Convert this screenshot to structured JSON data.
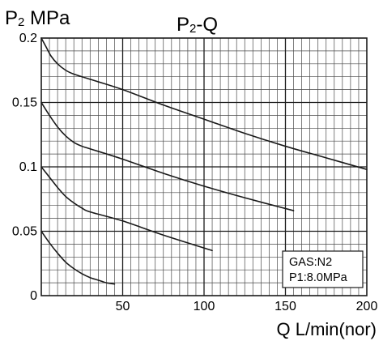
{
  "chart_data": {
    "type": "line",
    "title": {
      "main": "P",
      "sub": "2",
      "rest": "-Q"
    },
    "ylabel": {
      "main": "P",
      "sub": "2",
      "rest": " MPa"
    },
    "xlabel": "Q L/min(nor)",
    "xlim": [
      0,
      200
    ],
    "ylim": [
      0,
      0.2
    ],
    "x_ticks": [
      50,
      100,
      150,
      200
    ],
    "x_tick_labels": [
      "50",
      "100",
      "150",
      "200"
    ],
    "y_ticks": [
      0,
      0.05,
      0.1,
      0.15,
      0.2
    ],
    "y_tick_labels": [
      "0",
      "0.05",
      "0.1",
      "0.15",
      "0.2"
    ],
    "grid": {
      "major": true,
      "minor": true,
      "x_minor_step": 5,
      "y_minor_step": 0.01
    },
    "legend": {
      "position": "bottom-right",
      "lines": [
        "GAS:N2",
        "P1:8.0MPa"
      ]
    },
    "series": [
      {
        "x": [
          0,
          3,
          6,
          10,
          15,
          20,
          30,
          50,
          75,
          100,
          125,
          150,
          175,
          200
        ],
        "y": [
          0.2,
          0.193,
          0.186,
          0.18,
          0.175,
          0.172,
          0.168,
          0.16,
          0.148,
          0.137,
          0.126,
          0.116,
          0.107,
          0.098
        ]
      },
      {
        "x": [
          0,
          5,
          10,
          15,
          20,
          25,
          30,
          50,
          75,
          100,
          125,
          155
        ],
        "y": [
          0.15,
          0.14,
          0.131,
          0.124,
          0.119,
          0.116,
          0.114,
          0.106,
          0.095,
          0.085,
          0.076,
          0.066
        ]
      },
      {
        "x": [
          0,
          5,
          10,
          15,
          20,
          25,
          30,
          50,
          75,
          105
        ],
        "y": [
          0.1,
          0.092,
          0.084,
          0.077,
          0.072,
          0.068,
          0.065,
          0.058,
          0.047,
          0.035
        ]
      },
      {
        "x": [
          0,
          5,
          10,
          15,
          20,
          25,
          30,
          35,
          40,
          45
        ],
        "y": [
          0.05,
          0.041,
          0.033,
          0.026,
          0.021,
          0.017,
          0.014,
          0.012,
          0.01,
          0.009
        ]
      }
    ]
  },
  "colors": {
    "line": "#1a1a1a",
    "minor_grid": "#4a4a4a",
    "major_grid": "#1a1a1a",
    "background": "#ffffff"
  }
}
